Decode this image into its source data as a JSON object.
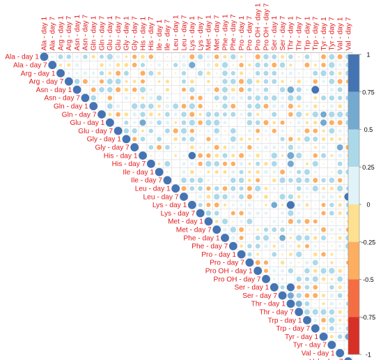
{
  "chart_data": {
    "type": "heatmap",
    "variables": [
      "Ala - day 1",
      "Ala - day 7",
      "Arg - day 1",
      "Arg - day 7",
      "Asn - day 1",
      "Asn - day 7",
      "Gln - day 1",
      "Gln - day 7",
      "Glu - day 1",
      "Glu - day 7",
      "Gly - day 1",
      "Gly - day 7",
      "His - day 1",
      "His - day 7",
      "Ile - day 1",
      "Ile - day 7",
      "Leu - day 1",
      "Leu - day 7",
      "Lys - day 1",
      "Lys - day 7",
      "Met - day 1",
      "Met - day 7",
      "Phe - day 1",
      "Phe - day 7",
      "Pro - day 1",
      "Pro - day 7",
      "Pro OH - day 1",
      "Pro OH - day 7",
      "Ser - day 1",
      "Ser - day 7",
      "Thr - day 1",
      "Thr - day 7",
      "Trp - day 1",
      "Trp - day 7",
      "Tyr - day 1",
      "Tyr - day 7",
      "Val - day 1",
      "Val - day 7"
    ],
    "layout": "upper-triangle",
    "diagonal_value": 1,
    "highlighted_correlations": [
      {
        "row": "Ala - day 1",
        "col": "Glu - day 1",
        "value": 0.5
      },
      {
        "row": "Ala - day 1",
        "col": "Lys - day 7",
        "value": 0.4
      },
      {
        "row": "Ala - day 1",
        "col": "Tyr - day 7",
        "value": 0.45
      },
      {
        "row": "Ala - day 7",
        "col": "Lys - day 1",
        "value": 0.6
      },
      {
        "row": "Ala - day 7",
        "col": "Pro OH - day 1",
        "value": 0.4
      },
      {
        "row": "Arg - day 7",
        "col": "Trp - day 7",
        "value": -0.3
      },
      {
        "row": "Asn - day 1",
        "col": "Thr - day 1",
        "value": 0.65
      },
      {
        "row": "Asn - day 1",
        "col": "Trp - day 7",
        "value": 0.85
      },
      {
        "row": "Asn - day 7",
        "col": "Thr - day 1",
        "value": 0.5
      },
      {
        "row": "Gln - day 1",
        "col": "Lys - day 1",
        "value": 0.5
      },
      {
        "row": "Gln - day 7",
        "col": "Tyr - day 1",
        "value": 0.55
      },
      {
        "row": "Glu - day 1",
        "col": "His - day 1",
        "value": 0.6
      },
      {
        "row": "Glu - day 1",
        "col": "Tyr - day 1",
        "value": 0.6
      },
      {
        "row": "Gly - day 7",
        "col": "Val - day 1",
        "value": 0.55
      },
      {
        "row": "His - day 1",
        "col": "Lys - day 1",
        "value": 0.8
      },
      {
        "row": "His - day 1",
        "col": "Thr - day 1",
        "value": 0.7
      },
      {
        "row": "His - day 7",
        "col": "Thr - day 1",
        "value": 0.6
      },
      {
        "row": "Leu - day 7",
        "col": "Val - day 7",
        "value": 0.85
      },
      {
        "row": "Lys - day 1",
        "col": "Thr - day 1",
        "value": 0.9
      },
      {
        "row": "Lys - day 1",
        "col": "Ser - day 1",
        "value": 0.55
      },
      {
        "row": "Lys - day 7",
        "col": "Thr - day 1",
        "value": 0.5
      },
      {
        "row": "Phe - day 1",
        "col": "Ser - day 7",
        "value": 0.55
      },
      {
        "row": "Ser - day 1",
        "col": "Thr - day 1",
        "value": 0.9
      },
      {
        "row": "Ser - day 7",
        "col": "Thr - day 1",
        "value": 0.6
      },
      {
        "row": "Thr - day 1",
        "col": "Thr - day 7",
        "value": 0.6
      },
      {
        "row": "Trp - day 1",
        "col": "Tyr - day 7",
        "value": 0.5
      },
      {
        "row": "Tyr - day 1",
        "col": "Val - day 7",
        "value": 0.6
      }
    ],
    "colorbar": {
      "ticks": [
        "1",
        "0.75",
        "0.5",
        "0.25",
        "0",
        "-0.25",
        "-0.5",
        "-0.75",
        "-1"
      ],
      "range": [
        -1,
        1
      ],
      "colors": [
        "#4574b4",
        "#74a9d0",
        "#abd9e9",
        "#e0f3f8",
        "#fee090",
        "#fdae61",
        "#f46d43",
        "#d73027"
      ]
    },
    "grid": true,
    "label_color": "#e41a1c",
    "legend_placement": "right"
  }
}
